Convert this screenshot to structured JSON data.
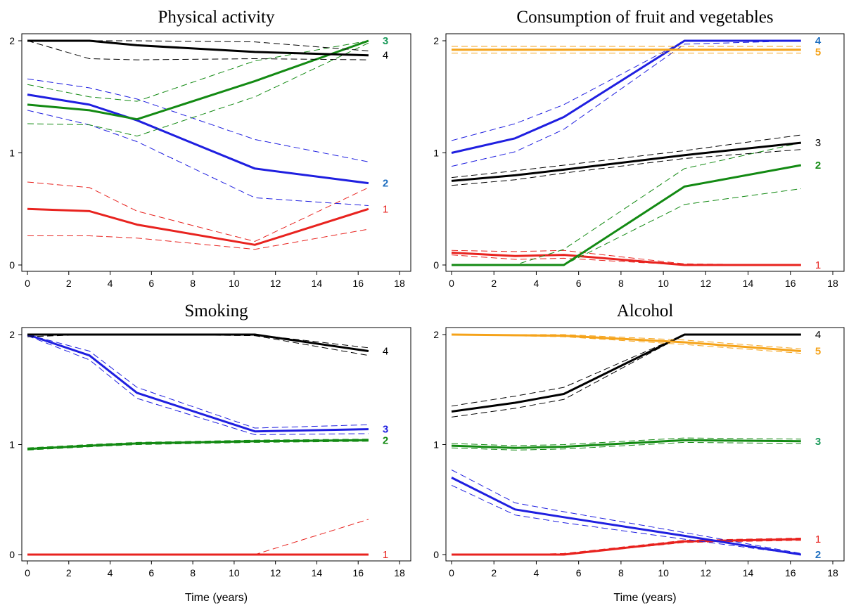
{
  "colors": {
    "red": "#e8231f",
    "blue": "#1f1fe0",
    "green": "#138a13",
    "black": "#000000",
    "orange": "#f5a31a",
    "label_blue": "#1f6fc0",
    "label_green": "#1a9a5a"
  },
  "x_label": "Time (years)",
  "chart_data": [
    {
      "type": "line",
      "title": "Physical activity",
      "xlabel": "",
      "ylabel": "",
      "xlim": [
        0,
        18
      ],
      "ylim": [
        0,
        2
      ],
      "xticks": [
        0,
        2,
        4,
        6,
        8,
        10,
        12,
        14,
        16,
        18
      ],
      "yticks": [
        0,
        1,
        2
      ],
      "grid": false,
      "series": [
        {
          "label": "1",
          "color": "red",
          "label_color": "red",
          "x": [
            0,
            3,
            5.3,
            11,
            16.5
          ],
          "y": [
            0.5,
            0.48,
            0.36,
            0.18,
            0.5
          ],
          "lower": [
            0.26,
            0.26,
            0.24,
            0.14,
            0.32
          ],
          "upper": [
            0.74,
            0.69,
            0.48,
            0.21,
            0.69
          ]
        },
        {
          "label": "2",
          "color": "blue",
          "label_color": "label_blue",
          "x": [
            0,
            3,
            5.3,
            11,
            16.5
          ],
          "y": [
            1.52,
            1.43,
            1.29,
            0.86,
            0.73
          ],
          "lower": [
            1.38,
            1.25,
            1.1,
            0.6,
            0.53
          ],
          "upper": [
            1.66,
            1.58,
            1.48,
            1.12,
            0.92
          ]
        },
        {
          "label": "3",
          "color": "green",
          "label_color": "label_green",
          "x": [
            0,
            3,
            5.3,
            11,
            16.5
          ],
          "y": [
            1.43,
            1.38,
            1.3,
            1.64,
            2.0
          ],
          "lower": [
            1.26,
            1.25,
            1.15,
            1.5,
            1.98
          ],
          "upper": [
            1.61,
            1.5,
            1.46,
            1.82,
            2.0
          ]
        },
        {
          "label": "4",
          "color": "black",
          "label_color": "black",
          "x": [
            0,
            3,
            5.3,
            11,
            16.5
          ],
          "y": [
            2.0,
            2.0,
            1.96,
            1.9,
            1.87
          ],
          "lower": [
            2.0,
            1.84,
            1.83,
            1.84,
            1.83
          ],
          "upper": [
            2.0,
            2.0,
            2.0,
            1.99,
            1.91
          ]
        }
      ]
    },
    {
      "type": "line",
      "title": "Consumption of fruit and vegetables",
      "xlabel": "",
      "ylabel": "",
      "xlim": [
        0,
        18
      ],
      "ylim": [
        0,
        2
      ],
      "xticks": [
        0,
        2,
        4,
        6,
        8,
        10,
        12,
        14,
        16,
        18
      ],
      "yticks": [
        0,
        1,
        2
      ],
      "grid": false,
      "series": [
        {
          "label": "1",
          "color": "red",
          "label_color": "red",
          "x": [
            0,
            3,
            5.3,
            11,
            16.5
          ],
          "y": [
            0.11,
            0.08,
            0.09,
            0.0,
            0.0
          ],
          "lower": [
            0.09,
            0.05,
            0.06,
            0.0,
            0.0
          ],
          "upper": [
            0.13,
            0.12,
            0.13,
            0.01,
            0.0
          ]
        },
        {
          "label": "2",
          "color": "green",
          "label_color": "green",
          "x": [
            0,
            3,
            5.3,
            11,
            16.5
          ],
          "y": [
            0.0,
            0.0,
            0.0,
            0.7,
            0.89
          ],
          "lower": [
            0.0,
            0.0,
            0.0,
            0.54,
            0.68
          ],
          "upper": [
            0.0,
            0.0,
            0.14,
            0.86,
            1.09
          ]
        },
        {
          "label": "3",
          "color": "black",
          "label_color": "black",
          "x": [
            0,
            3,
            5.3,
            11,
            16.5
          ],
          "y": [
            0.75,
            0.8,
            0.85,
            0.98,
            1.09
          ],
          "lower": [
            0.71,
            0.76,
            0.82,
            0.95,
            1.03
          ],
          "upper": [
            0.78,
            0.84,
            0.89,
            1.02,
            1.16
          ]
        },
        {
          "label": "4",
          "color": "blue",
          "label_color": "label_blue",
          "x": [
            0,
            3,
            5.3,
            11,
            16.5
          ],
          "y": [
            1.0,
            1.13,
            1.32,
            2.0,
            2.0
          ],
          "lower": [
            0.88,
            1.01,
            1.21,
            1.97,
            2.0
          ],
          "upper": [
            1.11,
            1.26,
            1.43,
            2.0,
            2.0
          ]
        },
        {
          "label": "5",
          "color": "orange",
          "label_color": "orange",
          "x": [
            0,
            16.5
          ],
          "y": [
            1.92,
            1.92
          ],
          "lower": [
            1.89,
            1.89
          ],
          "upper": [
            1.95,
            1.95
          ]
        }
      ]
    },
    {
      "type": "line",
      "title": "Smoking",
      "xlabel": "Time (years)",
      "ylabel": "",
      "xlim": [
        0,
        18
      ],
      "ylim": [
        0,
        2
      ],
      "xticks": [
        0,
        2,
        4,
        6,
        8,
        10,
        12,
        14,
        16,
        18
      ],
      "yticks": [
        0,
        1,
        2
      ],
      "grid": false,
      "series": [
        {
          "label": "1",
          "color": "red",
          "label_color": "red",
          "x": [
            0,
            11,
            16.5
          ],
          "y": [
            0.0,
            0.0,
            0.0
          ],
          "lower": [
            0.0,
            0.0,
            0.0
          ],
          "upper": [
            0.0,
            0.0,
            0.32
          ]
        },
        {
          "label": "2",
          "color": "green",
          "label_color": "green",
          "x": [
            0,
            3,
            5.3,
            11,
            16.5
          ],
          "y": [
            0.96,
            0.99,
            1.01,
            1.03,
            1.04
          ],
          "lower": [
            0.95,
            0.98,
            1.0,
            1.02,
            1.03
          ],
          "upper": [
            0.97,
            1.0,
            1.02,
            1.04,
            1.05
          ]
        },
        {
          "label": "3",
          "color": "blue",
          "label_color": "blue",
          "x": [
            0,
            3,
            5.3,
            11,
            16.5
          ],
          "y": [
            2.0,
            1.81,
            1.47,
            1.12,
            1.14
          ],
          "lower": [
            1.99,
            1.77,
            1.42,
            1.09,
            1.1
          ],
          "upper": [
            2.0,
            1.85,
            1.52,
            1.15,
            1.18
          ]
        },
        {
          "label": "4",
          "color": "black",
          "label_color": "black",
          "x": [
            0,
            3,
            5.3,
            11,
            16.5
          ],
          "y": [
            2.0,
            2.0,
            2.0,
            2.0,
            1.85
          ],
          "lower": [
            1.98,
            2.0,
            2.0,
            1.99,
            1.81
          ],
          "upper": [
            2.0,
            2.0,
            2.0,
            2.0,
            1.88
          ]
        }
      ]
    },
    {
      "type": "line",
      "title": "Alcohol",
      "xlabel": "Time (years)",
      "ylabel": "",
      "xlim": [
        0,
        18
      ],
      "ylim": [
        0,
        2
      ],
      "xticks": [
        0,
        2,
        4,
        6,
        8,
        10,
        12,
        14,
        16,
        18
      ],
      "yticks": [
        0,
        1,
        2
      ],
      "grid": false,
      "series": [
        {
          "label": "1",
          "color": "red",
          "label_color": "red",
          "x": [
            0,
            3,
            5.3,
            11,
            16.5
          ],
          "y": [
            0.0,
            0.0,
            0.0,
            0.12,
            0.14
          ],
          "lower": [
            0.0,
            0.0,
            0.0,
            0.11,
            0.13
          ],
          "upper": [
            0.0,
            0.0,
            0.01,
            0.13,
            0.15
          ]
        },
        {
          "label": "2",
          "color": "blue",
          "label_color": "label_blue",
          "x": [
            0,
            3,
            5.3,
            11,
            16.5
          ],
          "y": [
            0.7,
            0.41,
            0.34,
            0.17,
            0.0
          ],
          "lower": [
            0.63,
            0.36,
            0.29,
            0.14,
            0.0
          ],
          "upper": [
            0.77,
            0.47,
            0.39,
            0.2,
            0.01
          ]
        },
        {
          "label": "3",
          "color": "green",
          "label_color": "label_green",
          "x": [
            0,
            3,
            5.3,
            11,
            16.5
          ],
          "y": [
            0.99,
            0.97,
            0.98,
            1.04,
            1.03
          ],
          "lower": [
            0.97,
            0.95,
            0.96,
            1.02,
            1.01
          ],
          "upper": [
            1.01,
            0.99,
            1.0,
            1.06,
            1.05
          ]
        },
        {
          "label": "4",
          "color": "black",
          "label_color": "black",
          "x": [
            0,
            3,
            5.3,
            11,
            16.5
          ],
          "y": [
            1.3,
            1.38,
            1.46,
            2.0,
            2.0
          ],
          "lower": [
            1.25,
            1.33,
            1.41,
            2.0,
            2.0
          ],
          "upper": [
            1.35,
            1.44,
            1.52,
            2.0,
            2.0
          ]
        },
        {
          "label": "5",
          "color": "orange",
          "label_color": "orange",
          "x": [
            0,
            5.3,
            11,
            16.5
          ],
          "y": [
            2.0,
            1.99,
            1.93,
            1.85
          ],
          "lower": [
            2.0,
            1.98,
            1.91,
            1.83
          ],
          "upper": [
            2.0,
            2.0,
            1.95,
            1.87
          ]
        }
      ]
    }
  ]
}
